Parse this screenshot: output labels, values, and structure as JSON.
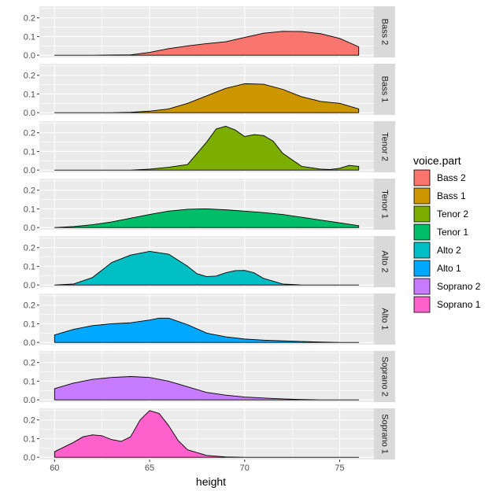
{
  "chart_data": {
    "type": "area",
    "title": "",
    "xlabel": "height",
    "ylabel": "",
    "xlim": [
      59.2,
      76.8
    ],
    "ylim": [
      -0.012,
      0.262
    ],
    "x_ticks": [
      60,
      65,
      70,
      75
    ],
    "y_ticks": [
      0.0,
      0.1,
      0.2
    ],
    "y_tick_labels": [
      "0.0",
      "0.1",
      "0.2"
    ],
    "grid": true,
    "facet_by": "voice.part",
    "legend": {
      "title": "voice.part",
      "position": "right",
      "entries": [
        {
          "label": "Bass 2",
          "color": "#F8766D"
        },
        {
          "label": "Bass 1",
          "color": "#CD9600"
        },
        {
          "label": "Tenor 2",
          "color": "#7CAE00"
        },
        {
          "label": "Tenor 1",
          "color": "#00BE67"
        },
        {
          "label": "Alto 2",
          "color": "#00BFC4"
        },
        {
          "label": "Alto 1",
          "color": "#00A9FF"
        },
        {
          "label": "Soprano 2",
          "color": "#C77CFF"
        },
        {
          "label": "Soprano 1",
          "color": "#FF61CC"
        }
      ]
    },
    "series": [
      {
        "name": "Bass 2",
        "color": "#F8766D",
        "x": [
          60,
          62,
          64,
          65,
          66,
          67,
          68,
          69,
          70,
          71,
          72,
          73,
          74,
          75,
          76
        ],
        "y": [
          0.0,
          0.0,
          0.002,
          0.015,
          0.035,
          0.05,
          0.062,
          0.072,
          0.095,
          0.118,
          0.128,
          0.127,
          0.115,
          0.09,
          0.045
        ]
      },
      {
        "name": "Bass 1",
        "color": "#CD9600",
        "x": [
          60,
          63,
          64,
          65,
          66,
          67,
          68,
          69,
          70,
          71,
          72,
          73,
          74,
          75,
          76
        ],
        "y": [
          0.0,
          0.0,
          0.002,
          0.008,
          0.02,
          0.05,
          0.09,
          0.13,
          0.155,
          0.152,
          0.125,
          0.085,
          0.06,
          0.05,
          0.02
        ]
      },
      {
        "name": "Tenor 2",
        "color": "#7CAE00",
        "x": [
          60,
          64,
          65,
          66,
          67,
          68,
          68.5,
          69,
          69.5,
          70,
          70.5,
          71,
          71.5,
          72,
          73,
          74,
          74.5,
          75,
          75.5,
          76
        ],
        "y": [
          0.0,
          0.0,
          0.005,
          0.015,
          0.03,
          0.15,
          0.22,
          0.235,
          0.215,
          0.18,
          0.19,
          0.185,
          0.155,
          0.09,
          0.02,
          0.005,
          0.003,
          0.01,
          0.025,
          0.02
        ]
      },
      {
        "name": "Tenor 1",
        "color": "#00BE67",
        "x": [
          60,
          61,
          62,
          63,
          64,
          65,
          66,
          67,
          68,
          69,
          70,
          71,
          72,
          73,
          74,
          75,
          76
        ],
        "y": [
          0.0,
          0.005,
          0.015,
          0.03,
          0.05,
          0.07,
          0.088,
          0.098,
          0.1,
          0.095,
          0.088,
          0.08,
          0.07,
          0.055,
          0.04,
          0.025,
          0.01
        ]
      },
      {
        "name": "Alto 2",
        "color": "#00BFC4",
        "x": [
          60,
          61,
          62,
          63,
          64,
          65,
          66,
          67,
          67.5,
          68,
          68.5,
          69,
          69.5,
          70,
          70.5,
          71,
          72,
          73,
          74,
          75,
          76
        ],
        "y": [
          0.0,
          0.005,
          0.04,
          0.12,
          0.16,
          0.18,
          0.165,
          0.1,
          0.06,
          0.045,
          0.048,
          0.065,
          0.077,
          0.078,
          0.065,
          0.035,
          0.005,
          0.0,
          0.0,
          0.0,
          0.0
        ]
      },
      {
        "name": "Alto 1",
        "color": "#00A9FF",
        "x": [
          60,
          61,
          62,
          63,
          64,
          65,
          65.5,
          66,
          67,
          68,
          69,
          70,
          71,
          72,
          73,
          74,
          75,
          76
        ],
        "y": [
          0.04,
          0.07,
          0.09,
          0.1,
          0.105,
          0.12,
          0.13,
          0.13,
          0.095,
          0.05,
          0.03,
          0.018,
          0.012,
          0.008,
          0.005,
          0.002,
          0.0,
          0.0
        ]
      },
      {
        "name": "Soprano 2",
        "color": "#C77CFF",
        "x": [
          60,
          61,
          62,
          63,
          64,
          65,
          66,
          67,
          68,
          69,
          70,
          71,
          72,
          73,
          74,
          75,
          76
        ],
        "y": [
          0.06,
          0.09,
          0.11,
          0.12,
          0.125,
          0.12,
          0.1,
          0.07,
          0.04,
          0.025,
          0.015,
          0.01,
          0.005,
          0.002,
          0.0,
          0.0,
          0.0
        ]
      },
      {
        "name": "Soprano 1",
        "color": "#FF61CC",
        "x": [
          60,
          61,
          61.5,
          62,
          62.5,
          63,
          63.5,
          64,
          64.5,
          65,
          65.5,
          66,
          66.5,
          67,
          68,
          69,
          70,
          71,
          72,
          73,
          74,
          75,
          76
        ],
        "y": [
          0.03,
          0.08,
          0.11,
          0.12,
          0.115,
          0.095,
          0.085,
          0.11,
          0.2,
          0.25,
          0.235,
          0.17,
          0.09,
          0.04,
          0.01,
          0.002,
          0.0,
          0.0,
          0.0,
          0.0,
          0.0,
          0.0,
          0.0
        ]
      }
    ]
  }
}
